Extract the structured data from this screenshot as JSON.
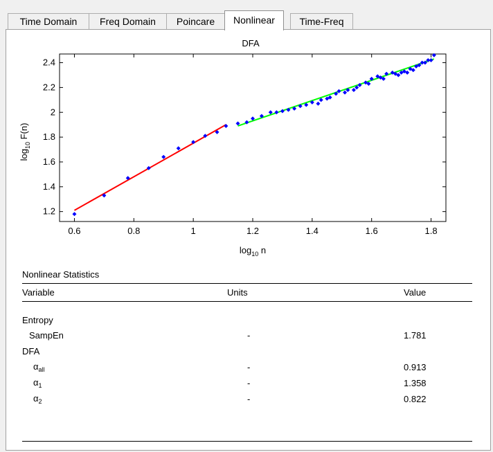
{
  "tabs": [
    {
      "label": "Time Domain",
      "active": false
    },
    {
      "label": "Freq Domain",
      "active": false
    },
    {
      "label": "Poincare",
      "active": false
    },
    {
      "label": "Nonlinear",
      "active": true
    },
    {
      "label": "Time-Freq",
      "active": false
    }
  ],
  "chart_data": {
    "type": "scatter",
    "title": "DFA",
    "xlabel": {
      "base": "log",
      "sub": "10",
      "rest": " n"
    },
    "ylabel": {
      "base": "log",
      "sub": "10",
      "rest": " F(n)"
    },
    "xlim": [
      0.55,
      1.85
    ],
    "ylim": [
      1.12,
      2.47
    ],
    "xticks": [
      "0.6",
      "0.8",
      "1",
      "1.2",
      "1.4",
      "1.6",
      "1.8"
    ],
    "yticks": [
      "1.2",
      "1.4",
      "1.6",
      "1.8",
      "2",
      "2.2",
      "2.4"
    ],
    "grid": false,
    "point_color": "#0000ff",
    "series": [
      {
        "role": "points",
        "color": "#0000ff",
        "x": [
          0.6,
          0.7,
          0.78,
          0.85,
          0.9,
          0.95,
          1.0,
          1.04,
          1.08,
          1.11,
          1.15,
          1.18,
          1.2,
          1.23,
          1.26,
          1.28,
          1.3,
          1.32,
          1.34,
          1.36,
          1.38,
          1.4,
          1.42,
          1.43,
          1.45,
          1.46,
          1.48,
          1.49,
          1.51,
          1.52,
          1.54,
          1.55,
          1.56,
          1.58,
          1.59,
          1.6,
          1.62,
          1.63,
          1.64,
          1.65,
          1.67,
          1.68,
          1.69,
          1.7,
          1.71,
          1.72,
          1.73,
          1.74,
          1.75,
          1.76,
          1.77,
          1.78,
          1.79,
          1.8,
          1.81
        ],
        "y": [
          1.18,
          1.33,
          1.47,
          1.55,
          1.64,
          1.71,
          1.76,
          1.81,
          1.84,
          1.89,
          1.91,
          1.92,
          1.95,
          1.97,
          2.0,
          2.0,
          2.01,
          2.02,
          2.03,
          2.05,
          2.06,
          2.08,
          2.07,
          2.1,
          2.11,
          2.12,
          2.15,
          2.17,
          2.16,
          2.18,
          2.18,
          2.2,
          2.22,
          2.24,
          2.23,
          2.27,
          2.29,
          2.28,
          2.27,
          2.31,
          2.32,
          2.31,
          2.3,
          2.32,
          2.33,
          2.32,
          2.35,
          2.34,
          2.37,
          2.38,
          2.4,
          2.4,
          2.42,
          2.42,
          2.46
        ]
      },
      {
        "role": "fit-short",
        "color": "#ff0000",
        "x": [
          0.6,
          1.11
        ],
        "y": [
          1.21,
          1.9
        ]
      },
      {
        "role": "fit-long",
        "color": "#00ff00",
        "x": [
          1.15,
          1.81
        ],
        "y": [
          1.89,
          2.43
        ]
      }
    ]
  },
  "stats": {
    "title": "Nonlinear Statistics",
    "columns": {
      "variable": "Variable",
      "units": "Units",
      "value": "Value"
    },
    "entropy_heading": "Entropy",
    "sampen": {
      "label": "SampEn",
      "units": "-",
      "value": "1.781"
    },
    "dfa_heading": "DFA",
    "alpha_all": {
      "symbol": "α",
      "sub": "all",
      "units": "-",
      "value": "0.913"
    },
    "alpha_1": {
      "symbol": "α",
      "sub": "1",
      "units": "-",
      "value": "1.358"
    },
    "alpha_2": {
      "symbol": "α",
      "sub": "2",
      "units": "-",
      "value": "0.822"
    }
  }
}
